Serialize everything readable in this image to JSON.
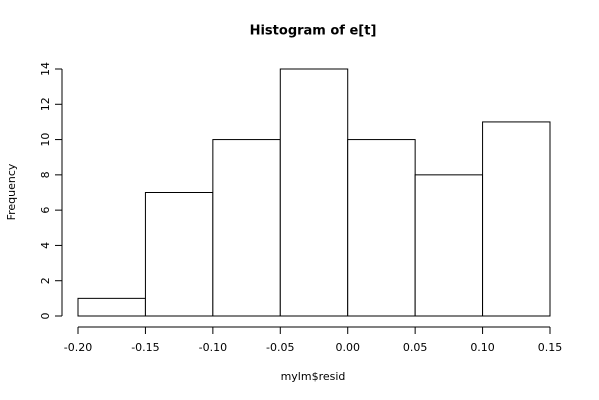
{
  "chart_data": {
    "type": "histogram",
    "title": "Histogram of e[t]",
    "x_label": "mylm$resid",
    "y_label": "Frequency",
    "bins": [
      -0.2,
      -0.15,
      -0.1,
      -0.05,
      0,
      0.05,
      0.1,
      0.15
    ],
    "values": [
      1,
      7,
      10,
      14,
      10,
      8,
      11
    ],
    "color": "#ffffff",
    "edge_color": "#000000",
    "xlim": [
      -0.2,
      0.15
    ],
    "ylim": [
      0,
      14
    ],
    "xticks": [
      {
        "value": -0.2,
        "label": "-0.20"
      },
      {
        "value": -0.15,
        "label": "-0.15"
      },
      {
        "value": -0.1,
        "label": "-0.10"
      },
      {
        "value": -0.05,
        "label": "-0.05"
      },
      {
        "value": 0,
        "label": "0.00"
      },
      {
        "value": 0.05,
        "label": "0.05"
      },
      {
        "value": 0.1,
        "label": "0.10"
      },
      {
        "value": 0.15,
        "label": "0.15"
      }
    ],
    "yticks": [
      0,
      2,
      4,
      6,
      8,
      10,
      12,
      14
    ],
    "grid": false
  }
}
